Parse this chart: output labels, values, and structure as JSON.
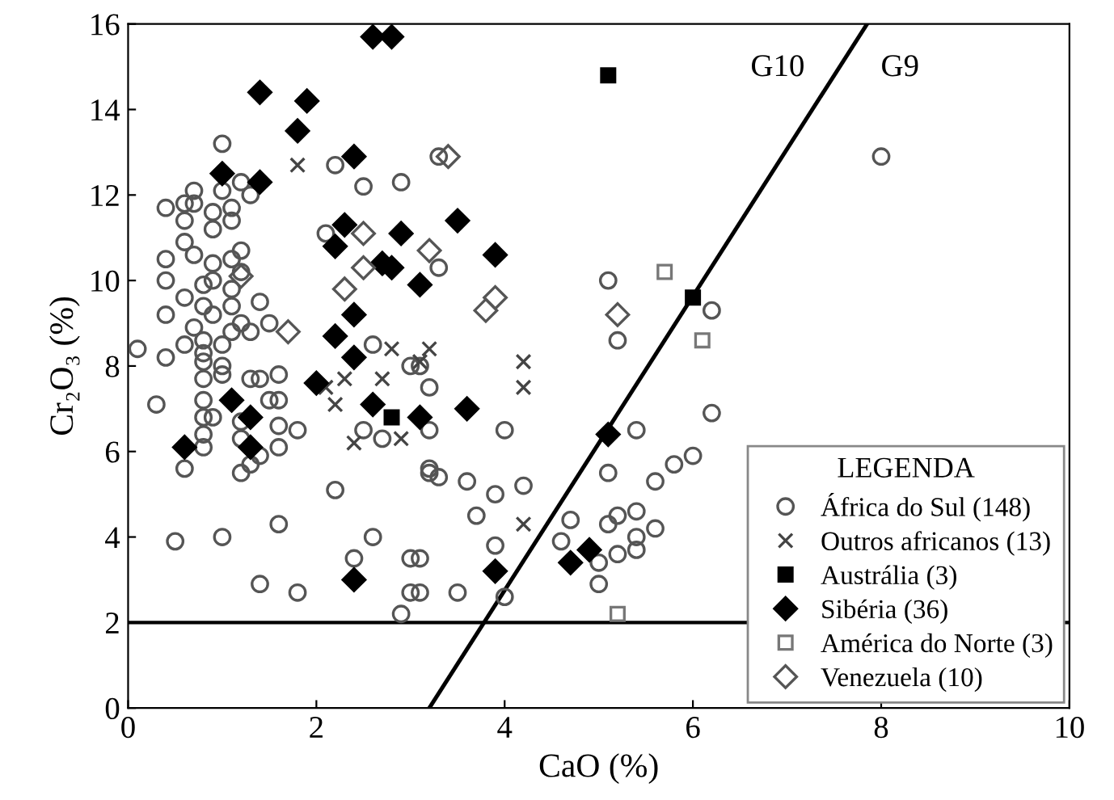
{
  "chart_data": {
    "type": "scatter",
    "xlabel": "CaO (%)",
    "ylabel": "Cr₂O₃ (%)",
    "legend_title": "LEGENDA",
    "legend": "bottom right",
    "grid": false,
    "xlim": [
      0,
      10
    ],
    "ylim": [
      0,
      16
    ],
    "xticks": [
      0,
      2,
      4,
      6,
      8,
      10
    ],
    "yticks": [
      0,
      2,
      4,
      6,
      8,
      10,
      12,
      14,
      16
    ],
    "ref_lines": [
      {
        "axis": "y",
        "value": 2,
        "color": "#000000"
      }
    ],
    "annotations": [
      "G10",
      "G9"
    ],
    "series": [
      {
        "name": "África do Sul (148)",
        "color": "#555555",
        "marker": "circle",
        "x": [
          1.0,
          2.2,
          2.5,
          2.9,
          0.7,
          1.0,
          1.2,
          0.4,
          0.6,
          0.7,
          0.9,
          1.1,
          1.3,
          0.6,
          0.9,
          1.1,
          2.1,
          0.6,
          0.7,
          0.4,
          0.9,
          1.1,
          1.2,
          1.2,
          0.4,
          0.6,
          0.8,
          0.9,
          1.1,
          1.4,
          0.8,
          0.9,
          1.1,
          1.2,
          0.4,
          1.5,
          0.7,
          0.8,
          1.1,
          1.3,
          0.1,
          0.4,
          0.6,
          0.8,
          1.0,
          0.8,
          1.0,
          0.8,
          1.0,
          1.3,
          1.6,
          1.4,
          2.6,
          3.0,
          3.2,
          3.3,
          0.3,
          0.8,
          0.8,
          0.9,
          0.8,
          0.8,
          0.6,
          1.2,
          1.2,
          1.2,
          1.3,
          1.6,
          1.6,
          1.4,
          1.8,
          1.5,
          2.2,
          0.5,
          1.0,
          1.6,
          1.4,
          1.8,
          2.4,
          2.6,
          3.0,
          3.0,
          2.9,
          2.5,
          2.7,
          3.2,
          1.6,
          3.3,
          5.1,
          5.2,
          6.2,
          3.1,
          3.2,
          4.0,
          3.2,
          3.3,
          3.6,
          3.9,
          4.2,
          3.7,
          3.9,
          3.1,
          3.1,
          3.5,
          4.0,
          5.4,
          5.1,
          5.6,
          5.8,
          6.0,
          4.7,
          4.6,
          5.1,
          5.2,
          5.4,
          5.6,
          5.4,
          5.2,
          5.4,
          5.0,
          5.0,
          6.2,
          8.0
        ],
        "values": [
          13.2,
          12.7,
          12.2,
          12.3,
          12.1,
          12.1,
          12.3,
          11.7,
          11.8,
          11.8,
          11.6,
          11.7,
          12.0,
          11.4,
          11.2,
          11.4,
          11.1,
          10.9,
          10.6,
          10.5,
          10.4,
          10.5,
          10.7,
          10.2,
          10.0,
          9.6,
          9.9,
          10.0,
          9.8,
          9.5,
          9.4,
          9.2,
          9.4,
          9.0,
          9.2,
          9.0,
          8.9,
          8.6,
          8.8,
          8.8,
          8.4,
          8.2,
          8.5,
          8.3,
          8.5,
          8.1,
          8.0,
          7.7,
          7.8,
          7.7,
          7.8,
          7.7,
          8.5,
          8.0,
          7.5,
          12.9,
          7.1,
          7.2,
          6.8,
          6.8,
          6.4,
          6.1,
          5.6,
          6.7,
          6.3,
          5.5,
          5.7,
          6.6,
          6.1,
          5.9,
          6.5,
          7.2,
          5.1,
          3.9,
          4.0,
          4.3,
          2.9,
          2.7,
          3.5,
          4.0,
          3.5,
          2.7,
          2.2,
          6.5,
          6.3,
          5.5,
          7.2,
          10.3,
          10.0,
          8.6,
          9.3,
          8.0,
          6.5,
          6.5,
          5.6,
          5.4,
          5.3,
          5.0,
          5.2,
          4.5,
          3.8,
          3.5,
          2.7,
          2.7,
          2.6,
          6.5,
          5.5,
          5.3,
          5.7,
          5.9,
          4.4,
          3.9,
          4.3,
          4.5,
          4.6,
          4.2,
          4.0,
          3.6,
          3.7,
          3.4,
          2.9,
          6.9,
          12.9
        ]
      },
      {
        "name": "Outros africanos (13)",
        "color": "#444444",
        "marker": "cross",
        "x": [
          1.8,
          2.8,
          3.2,
          2.1,
          2.3,
          2.2,
          2.4,
          4.2,
          4.2,
          4.2,
          2.9,
          2.7,
          3.1
        ],
        "values": [
          12.7,
          8.4,
          8.4,
          7.5,
          7.7,
          7.1,
          6.2,
          8.1,
          7.5,
          4.3,
          6.3,
          7.7,
          8.1
        ]
      },
      {
        "name": "Austrália (3)",
        "color": "#000000",
        "marker": "square",
        "x": [
          5.1,
          6.0,
          2.8
        ],
        "values": [
          14.8,
          9.6,
          6.8
        ]
      },
      {
        "name": "Sibéria (36)",
        "color": "#000000",
        "marker": "diamond",
        "x": [
          2.6,
          2.8,
          1.4,
          1.9,
          1.8,
          2.4,
          1.0,
          1.4,
          2.3,
          2.2,
          2.9,
          2.7,
          2.8,
          3.1,
          3.5,
          3.9,
          2.4,
          2.2,
          2.4,
          2.0,
          1.1,
          1.3,
          1.3,
          0.6,
          2.6,
          3.1,
          3.6,
          5.1,
          2.4,
          3.9,
          4.7,
          4.9
        ],
        "values": [
          15.7,
          15.7,
          14.4,
          14.2,
          13.5,
          12.9,
          12.5,
          12.3,
          11.3,
          10.8,
          11.1,
          10.4,
          10.3,
          9.9,
          11.4,
          10.6,
          9.2,
          8.7,
          8.2,
          7.6,
          7.2,
          6.8,
          6.1,
          6.1,
          7.1,
          6.8,
          7.0,
          6.4,
          3.0,
          3.2,
          3.4,
          3.7
        ]
      },
      {
        "name": "América do Norte (3)",
        "color": "#777777",
        "marker": "square",
        "x": [
          5.7,
          6.1,
          5.2
        ],
        "values": [
          10.2,
          8.6,
          2.2
        ]
      },
      {
        "name": "Venezuela (10)",
        "color": "#555555",
        "marker": "diamond",
        "x": [
          3.4,
          3.2,
          5.2,
          2.5,
          2.5,
          2.3,
          1.2,
          1.7,
          3.8,
          3.9
        ],
        "values": [
          12.9,
          10.7,
          9.2,
          11.1,
          10.3,
          9.8,
          10.1,
          8.8,
          9.3,
          9.6
        ]
      },
      {
        "type": "line",
        "color": "#000000",
        "x": [
          3.2,
          7.85
        ],
        "values": [
          0,
          16
        ]
      }
    ]
  }
}
